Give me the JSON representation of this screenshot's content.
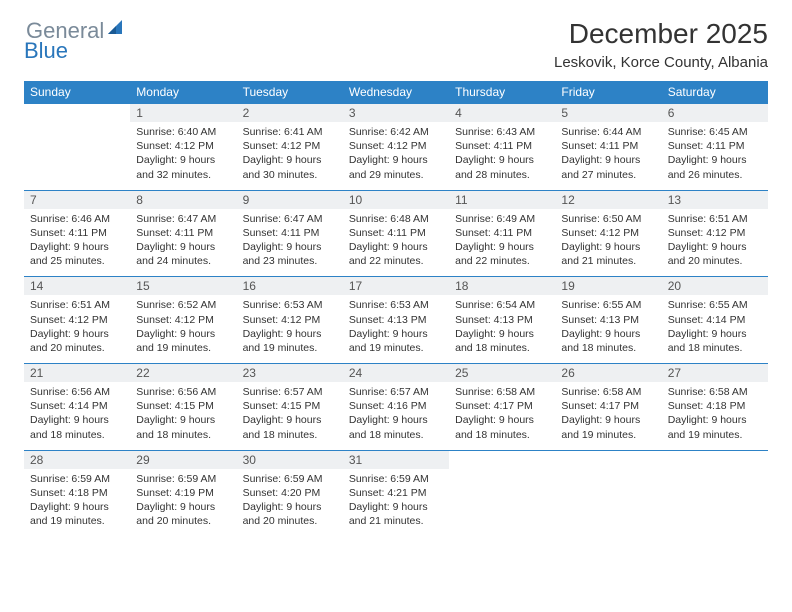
{
  "logo": {
    "text1": "General",
    "text2": "Blue"
  },
  "title": "December 2025",
  "location": "Leskovik, Korce County, Albania",
  "colors": {
    "header_bg": "#2d82c6",
    "header_text": "#ffffff",
    "daynum_bg": "#eef0f2",
    "daynum_text": "#555555",
    "body_text": "#333333",
    "rule": "#2d82c6",
    "logo_gray": "#7a8a99",
    "logo_blue": "#2976bb",
    "page_bg": "#ffffff"
  },
  "typography": {
    "title_fontsize": 28,
    "location_fontsize": 15,
    "weekday_fontsize": 12,
    "daynum_fontsize": 12,
    "cell_fontsize": 10.5,
    "font_family": "Arial"
  },
  "weekdays": [
    "Sunday",
    "Monday",
    "Tuesday",
    "Wednesday",
    "Thursday",
    "Friday",
    "Saturday"
  ],
  "weeks": [
    {
      "nums": [
        "",
        "1",
        "2",
        "3",
        "4",
        "5",
        "6"
      ],
      "cells": [
        null,
        {
          "sunrise": "Sunrise: 6:40 AM",
          "sunset": "Sunset: 4:12 PM",
          "day1": "Daylight: 9 hours",
          "day2": "and 32 minutes."
        },
        {
          "sunrise": "Sunrise: 6:41 AM",
          "sunset": "Sunset: 4:12 PM",
          "day1": "Daylight: 9 hours",
          "day2": "and 30 minutes."
        },
        {
          "sunrise": "Sunrise: 6:42 AM",
          "sunset": "Sunset: 4:12 PM",
          "day1": "Daylight: 9 hours",
          "day2": "and 29 minutes."
        },
        {
          "sunrise": "Sunrise: 6:43 AM",
          "sunset": "Sunset: 4:11 PM",
          "day1": "Daylight: 9 hours",
          "day2": "and 28 minutes."
        },
        {
          "sunrise": "Sunrise: 6:44 AM",
          "sunset": "Sunset: 4:11 PM",
          "day1": "Daylight: 9 hours",
          "day2": "and 27 minutes."
        },
        {
          "sunrise": "Sunrise: 6:45 AM",
          "sunset": "Sunset: 4:11 PM",
          "day1": "Daylight: 9 hours",
          "day2": "and 26 minutes."
        }
      ]
    },
    {
      "nums": [
        "7",
        "8",
        "9",
        "10",
        "11",
        "12",
        "13"
      ],
      "cells": [
        {
          "sunrise": "Sunrise: 6:46 AM",
          "sunset": "Sunset: 4:11 PM",
          "day1": "Daylight: 9 hours",
          "day2": "and 25 minutes."
        },
        {
          "sunrise": "Sunrise: 6:47 AM",
          "sunset": "Sunset: 4:11 PM",
          "day1": "Daylight: 9 hours",
          "day2": "and 24 minutes."
        },
        {
          "sunrise": "Sunrise: 6:47 AM",
          "sunset": "Sunset: 4:11 PM",
          "day1": "Daylight: 9 hours",
          "day2": "and 23 minutes."
        },
        {
          "sunrise": "Sunrise: 6:48 AM",
          "sunset": "Sunset: 4:11 PM",
          "day1": "Daylight: 9 hours",
          "day2": "and 22 minutes."
        },
        {
          "sunrise": "Sunrise: 6:49 AM",
          "sunset": "Sunset: 4:11 PM",
          "day1": "Daylight: 9 hours",
          "day2": "and 22 minutes."
        },
        {
          "sunrise": "Sunrise: 6:50 AM",
          "sunset": "Sunset: 4:12 PM",
          "day1": "Daylight: 9 hours",
          "day2": "and 21 minutes."
        },
        {
          "sunrise": "Sunrise: 6:51 AM",
          "sunset": "Sunset: 4:12 PM",
          "day1": "Daylight: 9 hours",
          "day2": "and 20 minutes."
        }
      ]
    },
    {
      "nums": [
        "14",
        "15",
        "16",
        "17",
        "18",
        "19",
        "20"
      ],
      "cells": [
        {
          "sunrise": "Sunrise: 6:51 AM",
          "sunset": "Sunset: 4:12 PM",
          "day1": "Daylight: 9 hours",
          "day2": "and 20 minutes."
        },
        {
          "sunrise": "Sunrise: 6:52 AM",
          "sunset": "Sunset: 4:12 PM",
          "day1": "Daylight: 9 hours",
          "day2": "and 19 minutes."
        },
        {
          "sunrise": "Sunrise: 6:53 AM",
          "sunset": "Sunset: 4:12 PM",
          "day1": "Daylight: 9 hours",
          "day2": "and 19 minutes."
        },
        {
          "sunrise": "Sunrise: 6:53 AM",
          "sunset": "Sunset: 4:13 PM",
          "day1": "Daylight: 9 hours",
          "day2": "and 19 minutes."
        },
        {
          "sunrise": "Sunrise: 6:54 AM",
          "sunset": "Sunset: 4:13 PM",
          "day1": "Daylight: 9 hours",
          "day2": "and 18 minutes."
        },
        {
          "sunrise": "Sunrise: 6:55 AM",
          "sunset": "Sunset: 4:13 PM",
          "day1": "Daylight: 9 hours",
          "day2": "and 18 minutes."
        },
        {
          "sunrise": "Sunrise: 6:55 AM",
          "sunset": "Sunset: 4:14 PM",
          "day1": "Daylight: 9 hours",
          "day2": "and 18 minutes."
        }
      ]
    },
    {
      "nums": [
        "21",
        "22",
        "23",
        "24",
        "25",
        "26",
        "27"
      ],
      "cells": [
        {
          "sunrise": "Sunrise: 6:56 AM",
          "sunset": "Sunset: 4:14 PM",
          "day1": "Daylight: 9 hours",
          "day2": "and 18 minutes."
        },
        {
          "sunrise": "Sunrise: 6:56 AM",
          "sunset": "Sunset: 4:15 PM",
          "day1": "Daylight: 9 hours",
          "day2": "and 18 minutes."
        },
        {
          "sunrise": "Sunrise: 6:57 AM",
          "sunset": "Sunset: 4:15 PM",
          "day1": "Daylight: 9 hours",
          "day2": "and 18 minutes."
        },
        {
          "sunrise": "Sunrise: 6:57 AM",
          "sunset": "Sunset: 4:16 PM",
          "day1": "Daylight: 9 hours",
          "day2": "and 18 minutes."
        },
        {
          "sunrise": "Sunrise: 6:58 AM",
          "sunset": "Sunset: 4:17 PM",
          "day1": "Daylight: 9 hours",
          "day2": "and 18 minutes."
        },
        {
          "sunrise": "Sunrise: 6:58 AM",
          "sunset": "Sunset: 4:17 PM",
          "day1": "Daylight: 9 hours",
          "day2": "and 19 minutes."
        },
        {
          "sunrise": "Sunrise: 6:58 AM",
          "sunset": "Sunset: 4:18 PM",
          "day1": "Daylight: 9 hours",
          "day2": "and 19 minutes."
        }
      ]
    },
    {
      "nums": [
        "28",
        "29",
        "30",
        "31",
        "",
        "",
        ""
      ],
      "cells": [
        {
          "sunrise": "Sunrise: 6:59 AM",
          "sunset": "Sunset: 4:18 PM",
          "day1": "Daylight: 9 hours",
          "day2": "and 19 minutes."
        },
        {
          "sunrise": "Sunrise: 6:59 AM",
          "sunset": "Sunset: 4:19 PM",
          "day1": "Daylight: 9 hours",
          "day2": "and 20 minutes."
        },
        {
          "sunrise": "Sunrise: 6:59 AM",
          "sunset": "Sunset: 4:20 PM",
          "day1": "Daylight: 9 hours",
          "day2": "and 20 minutes."
        },
        {
          "sunrise": "Sunrise: 6:59 AM",
          "sunset": "Sunset: 4:21 PM",
          "day1": "Daylight: 9 hours",
          "day2": "and 21 minutes."
        },
        null,
        null,
        null
      ]
    }
  ]
}
